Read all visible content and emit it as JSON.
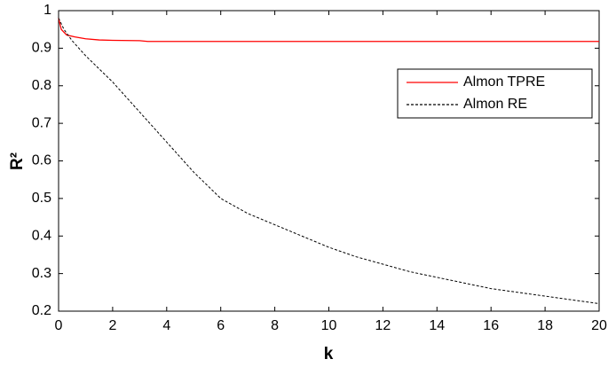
{
  "chart_data": {
    "type": "line",
    "xlabel": "k",
    "ylabel": "R²",
    "xlim": [
      0,
      20
    ],
    "xticks": [
      0,
      2,
      4,
      6,
      8,
      10,
      12,
      14,
      16,
      18,
      20
    ],
    "ylim": [
      0.2,
      1
    ],
    "yticks": [
      0.2,
      0.3,
      0.4,
      0.5,
      0.6,
      0.7,
      0.8,
      0.9,
      1
    ],
    "legend": "upper right",
    "series": [
      {
        "name": "Almon TPRE",
        "color": "#ff0000",
        "dash": "solid",
        "x": [
          0,
          0.1,
          0.3,
          0.6,
          1,
          1.5,
          2,
          3,
          3.3,
          20
        ],
        "values": [
          0.98,
          0.95,
          0.935,
          0.93,
          0.925,
          0.922,
          0.921,
          0.92,
          0.918,
          0.918
        ]
      },
      {
        "name": "Almon RE",
        "color": "#000000",
        "dash": "dashed",
        "x": [
          0,
          0.2,
          0.5,
          1,
          2,
          3,
          4,
          5,
          6,
          7,
          8,
          9,
          10,
          11,
          12,
          13,
          14,
          15,
          16,
          17,
          18,
          19,
          20
        ],
        "values": [
          0.98,
          0.95,
          0.92,
          0.88,
          0.81,
          0.73,
          0.65,
          0.57,
          0.5,
          0.46,
          0.43,
          0.4,
          0.37,
          0.345,
          0.325,
          0.305,
          0.29,
          0.275,
          0.26,
          0.25,
          0.24,
          0.23,
          0.22
        ]
      }
    ]
  }
}
